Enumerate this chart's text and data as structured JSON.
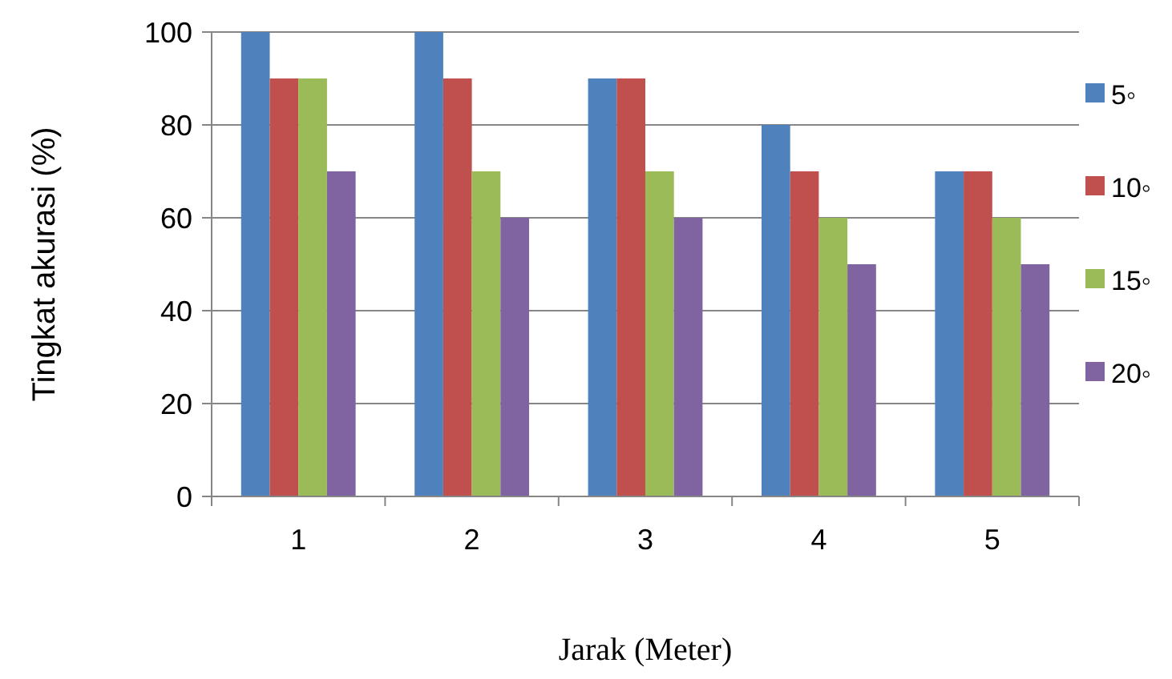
{
  "chart_data": {
    "type": "bar",
    "xlabel": "Jarak (Meter)",
    "ylabel": "Tingkat akurasi (%)",
    "categories": [
      "1",
      "2",
      "3",
      "4",
      "5"
    ],
    "series": [
      {
        "name": "5◦",
        "color": "#4f81bd",
        "values": [
          100,
          100,
          90,
          80,
          70
        ]
      },
      {
        "name": "10◦",
        "color": "#c0504d",
        "values": [
          90,
          90,
          90,
          70,
          70
        ]
      },
      {
        "name": "15◦",
        "color": "#9bbb59",
        "values": [
          90,
          70,
          70,
          60,
          60
        ]
      },
      {
        "name": "20◦",
        "color": "#8064a2",
        "values": [
          70,
          60,
          60,
          50,
          50
        ]
      }
    ],
    "ylim": [
      0,
      100
    ],
    "yticks": [
      0,
      20,
      40,
      60,
      80,
      100
    ],
    "grid": "y",
    "legend": "right"
  }
}
